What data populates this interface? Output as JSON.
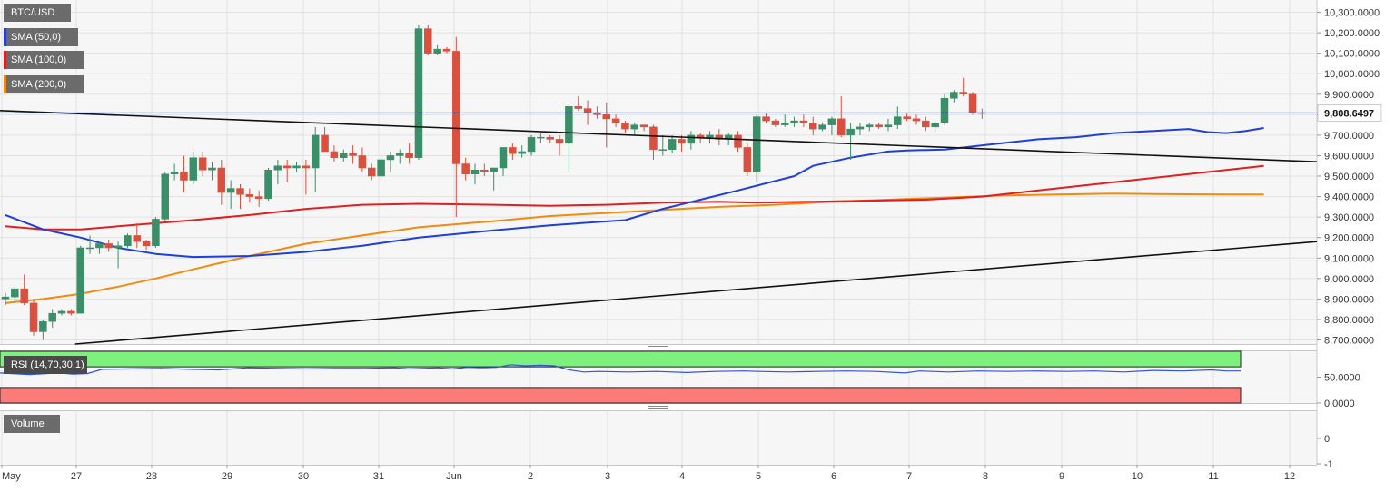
{
  "chart_data": {
    "type": "candlestick",
    "symbol": "BTC/USD",
    "x_labels": [
      "May",
      "27",
      "28",
      "29",
      "30",
      "31",
      "Jun",
      "2",
      "3",
      "4",
      "5",
      "6",
      "7",
      "8",
      "9",
      "10",
      "11",
      "12"
    ],
    "ylim": [
      8680,
      10360
    ],
    "y_ticks": [
      "10,300.0000",
      "10,200.0000",
      "10,100.0000",
      "10,000.0000",
      "9,900.0000",
      "9,800.0000",
      "9,700.0000",
      "9,600.0000",
      "9,500.0000",
      "9,400.0000",
      "9,300.0000",
      "9,200.0000",
      "9,100.0000",
      "9,000.0000",
      "8,900.0000",
      "8,800.0000",
      "8,700.0000"
    ],
    "last_price": "9,808.6497",
    "last_price_value": 9808.65,
    "candles": [
      [
        8900,
        8930,
        8870,
        8910
      ],
      [
        8910,
        8960,
        8880,
        8950
      ],
      [
        8950,
        9020,
        8870,
        8880
      ],
      [
        8880,
        8900,
        8720,
        8740
      ],
      [
        8740,
        8800,
        8700,
        8790
      ],
      [
        8790,
        8850,
        8760,
        8830
      ],
      [
        8830,
        8850,
        8820,
        8840
      ],
      [
        8840,
        8850,
        8820,
        8830
      ],
      [
        8830,
        9160,
        8830,
        9150
      ],
      [
        9150,
        9210,
        9120,
        9150
      ],
      [
        9150,
        9180,
        9120,
        9170
      ],
      [
        9170,
        9190,
        9130,
        9150
      ],
      [
        9150,
        9180,
        9050,
        9160
      ],
      [
        9160,
        9220,
        9150,
        9210
      ],
      [
        9210,
        9270,
        9150,
        9180
      ],
      [
        9180,
        9190,
        9140,
        9160
      ],
      [
        9160,
        9300,
        9150,
        9290
      ],
      [
        9290,
        9520,
        9280,
        9510
      ],
      [
        9510,
        9560,
        9480,
        9520
      ],
      [
        9520,
        9600,
        9420,
        9480
      ],
      [
        9480,
        9620,
        9460,
        9590
      ],
      [
        9590,
        9620,
        9500,
        9530
      ],
      [
        9530,
        9570,
        9480,
        9540
      ],
      [
        9540,
        9580,
        9360,
        9420
      ],
      [
        9420,
        9480,
        9340,
        9440
      ],
      [
        9440,
        9460,
        9340,
        9410
      ],
      [
        9410,
        9440,
        9370,
        9400
      ],
      [
        9400,
        9430,
        9350,
        9390
      ],
      [
        9390,
        9540,
        9380,
        9530
      ],
      [
        9530,
        9580,
        9460,
        9550
      ],
      [
        9550,
        9580,
        9470,
        9540
      ],
      [
        9540,
        9570,
        9520,
        9550
      ],
      [
        9550,
        9580,
        9410,
        9540
      ],
      [
        9540,
        9740,
        9420,
        9700
      ],
      [
        9700,
        9740,
        9620,
        9620
      ],
      [
        9620,
        9650,
        9570,
        9590
      ],
      [
        9590,
        9630,
        9570,
        9610
      ],
      [
        9610,
        9650,
        9560,
        9600
      ],
      [
        9600,
        9640,
        9520,
        9540
      ],
      [
        9540,
        9560,
        9480,
        9500
      ],
      [
        9500,
        9600,
        9480,
        9580
      ],
      [
        9580,
        9620,
        9520,
        9600
      ],
      [
        9600,
        9630,
        9560,
        9610
      ],
      [
        9610,
        9660,
        9560,
        9590
      ],
      [
        9590,
        10240,
        9580,
        10220
      ],
      [
        10220,
        10240,
        10090,
        10100
      ],
      [
        10100,
        10140,
        10090,
        10120
      ],
      [
        10120,
        10130,
        10100,
        10110
      ],
      [
        10110,
        10180,
        9300,
        9560
      ],
      [
        9560,
        9590,
        9480,
        9510
      ],
      [
        9510,
        9560,
        9460,
        9530
      ],
      [
        9530,
        9560,
        9500,
        9520
      ],
      [
        9520,
        9540,
        9430,
        9540
      ],
      [
        9540,
        9640,
        9500,
        9640
      ],
      [
        9640,
        9660,
        9580,
        9610
      ],
      [
        9610,
        9650,
        9590,
        9620
      ],
      [
        9620,
        9700,
        9600,
        9690
      ],
      [
        9690,
        9710,
        9660,
        9690
      ],
      [
        9690,
        9700,
        9660,
        9680
      ],
      [
        9680,
        9700,
        9600,
        9660
      ],
      [
        9660,
        9850,
        9520,
        9840
      ],
      [
        9840,
        9890,
        9820,
        9830
      ],
      [
        9830,
        9870,
        9750,
        9810
      ],
      [
        9810,
        9840,
        9780,
        9800
      ],
      [
        9800,
        9860,
        9640,
        9780
      ],
      [
        9780,
        9800,
        9740,
        9760
      ],
      [
        9760,
        9770,
        9710,
        9730
      ],
      [
        9730,
        9760,
        9700,
        9750
      ],
      [
        9750,
        9740,
        9720,
        9740
      ],
      [
        9740,
        9750,
        9580,
        9630
      ],
      [
        9630,
        9700,
        9600,
        9630
      ],
      [
        9630,
        9700,
        9610,
        9680
      ],
      [
        9680,
        9700,
        9620,
        9660
      ],
      [
        9660,
        9720,
        9630,
        9700
      ],
      [
        9700,
        9710,
        9660,
        9690
      ],
      [
        9690,
        9720,
        9660,
        9700
      ],
      [
        9700,
        9730,
        9650,
        9680
      ],
      [
        9680,
        9710,
        9650,
        9700
      ],
      [
        9700,
        9720,
        9620,
        9640
      ],
      [
        9640,
        9660,
        9500,
        9520
      ],
      [
        9520,
        9800,
        9470,
        9790
      ],
      [
        9790,
        9810,
        9760,
        9770
      ],
      [
        9770,
        9780,
        9740,
        9750
      ],
      [
        9750,
        9800,
        9740,
        9760
      ],
      [
        9760,
        9790,
        9740,
        9770
      ],
      [
        9770,
        9800,
        9740,
        9760
      ],
      [
        9760,
        9790,
        9700,
        9730
      ],
      [
        9730,
        9760,
        9720,
        9750
      ],
      [
        9750,
        9790,
        9700,
        9780
      ],
      [
        9780,
        9890,
        9690,
        9700
      ],
      [
        9700,
        9760,
        9580,
        9730
      ],
      [
        9730,
        9760,
        9700,
        9740
      ],
      [
        9740,
        9760,
        9720,
        9750
      ],
      [
        9750,
        9760,
        9730,
        9740
      ],
      [
        9740,
        9780,
        9720,
        9750
      ],
      [
        9750,
        9840,
        9730,
        9790
      ],
      [
        9790,
        9810,
        9770,
        9780
      ],
      [
        9780,
        9800,
        9750,
        9770
      ],
      [
        9770,
        9790,
        9720,
        9740
      ],
      [
        9740,
        9770,
        9720,
        9760
      ],
      [
        9760,
        9900,
        9750,
        9880
      ],
      [
        9880,
        9920,
        9860,
        9910
      ],
      [
        9910,
        9980,
        9890,
        9900
      ],
      [
        9900,
        9910,
        9800,
        9810
      ],
      [
        9810,
        9830,
        9780,
        9808
      ]
    ],
    "sma50": [
      [
        0,
        9310
      ],
      [
        4,
        9240
      ],
      [
        8,
        9200
      ],
      [
        12,
        9150
      ],
      [
        16,
        9120
      ],
      [
        20,
        9105
      ],
      [
        26,
        9110
      ],
      [
        32,
        9130
      ],
      [
        38,
        9160
      ],
      [
        44,
        9200
      ],
      [
        52,
        9235
      ],
      [
        58,
        9260
      ],
      [
        66,
        9285
      ],
      [
        70,
        9340
      ],
      [
        74,
        9385
      ],
      [
        78,
        9430
      ],
      [
        84,
        9500
      ],
      [
        86,
        9550
      ],
      [
        90,
        9590
      ],
      [
        94,
        9620
      ],
      [
        96,
        9625
      ],
      [
        100,
        9630
      ],
      [
        106,
        9660
      ],
      [
        110,
        9680
      ],
      [
        114,
        9690
      ],
      [
        118,
        9710
      ],
      [
        122,
        9720
      ],
      [
        126,
        9730
      ],
      [
        128,
        9715
      ],
      [
        130,
        9710
      ],
      [
        132,
        9720
      ],
      [
        134,
        9735
      ]
    ],
    "sma100": [
      [
        0,
        9255
      ],
      [
        4,
        9240
      ],
      [
        8,
        9240
      ],
      [
        12,
        9255
      ],
      [
        16,
        9270
      ],
      [
        20,
        9285
      ],
      [
        26,
        9310
      ],
      [
        32,
        9340
      ],
      [
        38,
        9360
      ],
      [
        44,
        9365
      ],
      [
        52,
        9360
      ],
      [
        58,
        9355
      ],
      [
        64,
        9360
      ],
      [
        70,
        9370
      ],
      [
        76,
        9375
      ],
      [
        80,
        9370
      ],
      [
        86,
        9375
      ],
      [
        92,
        9380
      ],
      [
        98,
        9385
      ],
      [
        104,
        9400
      ],
      [
        110,
        9430
      ],
      [
        116,
        9460
      ],
      [
        122,
        9490
      ],
      [
        128,
        9520
      ],
      [
        134,
        9550
      ]
    ],
    "sma200": [
      [
        0,
        8880
      ],
      [
        4,
        8900
      ],
      [
        8,
        8925
      ],
      [
        12,
        8960
      ],
      [
        16,
        9000
      ],
      [
        20,
        9045
      ],
      [
        26,
        9110
      ],
      [
        32,
        9170
      ],
      [
        38,
        9210
      ],
      [
        44,
        9250
      ],
      [
        52,
        9280
      ],
      [
        58,
        9305
      ],
      [
        64,
        9320
      ],
      [
        70,
        9335
      ],
      [
        76,
        9350
      ],
      [
        82,
        9360
      ],
      [
        88,
        9375
      ],
      [
        94,
        9385
      ],
      [
        100,
        9395
      ],
      [
        106,
        9405
      ],
      [
        112,
        9410
      ],
      [
        118,
        9415
      ],
      [
        124,
        9412
      ],
      [
        130,
        9410
      ],
      [
        134,
        9410
      ]
    ],
    "trend_lines": [
      {
        "from": [
          0,
          9820
        ],
        "to": [
          134,
          9570
        ]
      },
      {
        "from": [
          8,
          8680
        ],
        "to": [
          134,
          9180
        ]
      }
    ],
    "legend": [
      {
        "label": "BTC/USD",
        "color": ""
      },
      {
        "label": "SMA (50,0)",
        "color": "#1f3fd8"
      },
      {
        "label": "SMA (100,0)",
        "color": "#e02020"
      },
      {
        "label": "SMA (200,0)",
        "color": "#f28a0e"
      }
    ],
    "rsi": {
      "label": "RSI (14,70,30,1)",
      "ylim": [
        0,
        100
      ],
      "overbought": 70,
      "oversold": 30,
      "y_ticks": [
        "50.0000",
        "0.0000"
      ],
      "values": [
        [
          0,
          58
        ],
        [
          4,
          55
        ],
        [
          8,
          58
        ],
        [
          10,
          56
        ],
        [
          12,
          57
        ],
        [
          14,
          65
        ],
        [
          18,
          66
        ],
        [
          22,
          67
        ],
        [
          26,
          65
        ],
        [
          30,
          64
        ],
        [
          34,
          68
        ],
        [
          38,
          67
        ],
        [
          42,
          66
        ],
        [
          46,
          67
        ],
        [
          50,
          67
        ],
        [
          54,
          68
        ],
        [
          56,
          66
        ],
        [
          58,
          67
        ],
        [
          60,
          68
        ],
        [
          62,
          66
        ],
        [
          64,
          69
        ],
        [
          66,
          68
        ],
        [
          68,
          69
        ],
        [
          70,
          74
        ],
        [
          72,
          72
        ],
        [
          74,
          73
        ],
        [
          76,
          72
        ],
        [
          78,
          64
        ],
        [
          80,
          60
        ],
        [
          82,
          61
        ],
        [
          86,
          60
        ],
        [
          90,
          61
        ],
        [
          94,
          59
        ],
        [
          98,
          61
        ],
        [
          102,
          62
        ],
        [
          104,
          61
        ],
        [
          108,
          60
        ],
        [
          112,
          61
        ],
        [
          116,
          62
        ],
        [
          120,
          61
        ],
        [
          124,
          58
        ],
        [
          126,
          62
        ],
        [
          130,
          60
        ],
        [
          134,
          62
        ],
        [
          138,
          61
        ],
        [
          142,
          62
        ],
        [
          146,
          61
        ],
        [
          150,
          62
        ],
        [
          154,
          60
        ],
        [
          158,
          63
        ],
        [
          162,
          62
        ],
        [
          166,
          64
        ],
        [
          168,
          62
        ],
        [
          170,
          62
        ]
      ]
    },
    "volume": {
      "label": "Volume",
      "y_ticks": [
        "0",
        "-1"
      ]
    },
    "colors": {
      "up": "#3a8f68",
      "down": "#d9503f",
      "trend": "#111111",
      "rsi_line": "#2f56d6",
      "rsi_upper_band": "#7ef07e",
      "rsi_lower_band": "#fb7b7b"
    }
  }
}
